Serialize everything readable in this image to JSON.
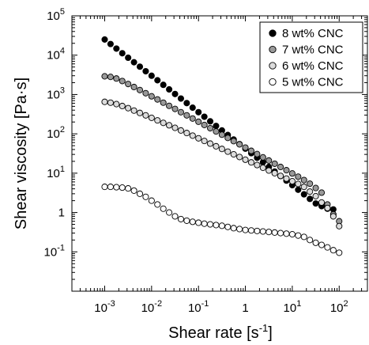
{
  "chart_data": {
    "type": "scatter",
    "xlabel": "Shear rate [s",
    "xlabel_sup": "-1",
    "xlabel_close": "]",
    "ylabel": "Shear viscosity [Pa·s]",
    "xscale": "log",
    "yscale": "log",
    "xlim": [
      0.0002,
      400
    ],
    "ylim": [
      0.01,
      100000
    ],
    "grid": false,
    "legend_position": "top-right",
    "x_ticks": [
      {
        "value": 0.001,
        "base": "10",
        "exp": "-3"
      },
      {
        "value": 0.01,
        "base": "10",
        "exp": "-2"
      },
      {
        "value": 0.1,
        "base": "10",
        "exp": "-1"
      },
      {
        "value": 1,
        "base": "1",
        "exp": ""
      },
      {
        "value": 10,
        "base": "10",
        "exp": "1"
      },
      {
        "value": 100,
        "base": "10",
        "exp": "2"
      }
    ],
    "y_ticks": [
      {
        "value": 0.1,
        "base": "10",
        "exp": "-1"
      },
      {
        "value": 1,
        "base": "1",
        "exp": ""
      },
      {
        "value": 10,
        "base": "10",
        "exp": "1"
      },
      {
        "value": 100,
        "base": "10",
        "exp": "2"
      },
      {
        "value": 1000,
        "base": "10",
        "exp": "3"
      },
      {
        "value": 10000,
        "base": "10",
        "exp": "4"
      },
      {
        "value": 100000,
        "base": "10",
        "exp": "5"
      }
    ],
    "series": [
      {
        "name": "8 wt% CNC",
        "color": "#000000",
        "x": [
          0.001,
          0.001334,
          0.001778,
          0.002371,
          0.003162,
          0.004217,
          0.005623,
          0.007499,
          0.01,
          0.01334,
          0.01778,
          0.02371,
          0.03162,
          0.04217,
          0.05623,
          0.07499,
          0.1,
          0.1334,
          0.1778,
          0.2371,
          0.3162,
          0.4217,
          0.5623,
          0.7499,
          1,
          1.334,
          1.778,
          2.371,
          3.162,
          4.217,
          5.623,
          7.499,
          10,
          13.34,
          17.78,
          23.71,
          31.62,
          42.17,
          56.23,
          74.99
        ],
        "y": [
          25000,
          19200,
          14700,
          11200,
          8600,
          6600,
          5100,
          3900,
          3000,
          2300,
          1760,
          1350,
          1030,
          790,
          605,
          463,
          355,
          272,
          208,
          159,
          122,
          93.5,
          71.6,
          54.8,
          42,
          32.2,
          24.6,
          18.9,
          14.4,
          11,
          8.45,
          6.47,
          4.95,
          3.79,
          2.9,
          2.22,
          1.7,
          1.45,
          1.25,
          1.2
        ]
      },
      {
        "name": "7 wt% CNC",
        "color": "#999999",
        "x": [
          0.001,
          0.001334,
          0.001778,
          0.002371,
          0.003162,
          0.004217,
          0.005623,
          0.007499,
          0.01,
          0.01334,
          0.01778,
          0.02371,
          0.03162,
          0.04217,
          0.05623,
          0.07499,
          0.1,
          0.1334,
          0.1778,
          0.2371,
          0.3162,
          0.4217,
          0.5623,
          0.7499,
          1,
          1.334,
          1.778,
          2.371,
          3.162,
          4.217,
          5.623,
          7.499,
          10,
          13.34,
          17.78,
          23.71,
          31.62,
          42.17,
          56.23,
          74.99,
          100
        ],
        "y": [
          2900,
          2800,
          2550,
          2200,
          1850,
          1550,
          1300,
          1080,
          900,
          750,
          620,
          515,
          430,
          355,
          295,
          245,
          203,
          168,
          139,
          115,
          95,
          78.7,
          65.2,
          54,
          44.7,
          37,
          30.6,
          25.3,
          21,
          17.4,
          14.4,
          11.9,
          9.84,
          8.15,
          6.7,
          5.4,
          4.2,
          3.2,
          1.6,
          0.9,
          0.6
        ]
      },
      {
        "name": "6 wt% CNC",
        "color": "#dcdcdc",
        "x": [
          0.001,
          0.001334,
          0.001778,
          0.002371,
          0.003162,
          0.004217,
          0.005623,
          0.007499,
          0.01,
          0.01334,
          0.01778,
          0.02371,
          0.03162,
          0.04217,
          0.05623,
          0.07499,
          0.1,
          0.1334,
          0.1778,
          0.2371,
          0.3162,
          0.4217,
          0.5623,
          0.7499,
          1,
          1.334,
          1.778,
          2.371,
          3.162,
          4.217,
          5.623,
          7.499,
          10,
          13.34,
          17.78,
          23.71,
          31.62,
          42.17,
          56.23,
          74.99,
          100
        ],
        "y": [
          650,
          620,
          570,
          510,
          450,
          390,
          340,
          295,
          255,
          220,
          190,
          165,
          142,
          122,
          105,
          90,
          77,
          66,
          56.5,
          48.3,
          41.3,
          35.3,
          30.2,
          25.8,
          22,
          18.8,
          16.1,
          13.7,
          11.7,
          10,
          8.55,
          7.3,
          6.24,
          5.33,
          4.5,
          3.4,
          2.6,
          1.8,
          1.3,
          0.8,
          0.45
        ]
      },
      {
        "name": "5 wt% CNC",
        "color": "#ffffff",
        "x": [
          0.001,
          0.001334,
          0.001778,
          0.002371,
          0.003162,
          0.004217,
          0.005623,
          0.007499,
          0.01,
          0.01334,
          0.01778,
          0.02371,
          0.03162,
          0.04217,
          0.05623,
          0.07499,
          0.1,
          0.1334,
          0.1778,
          0.2371,
          0.3162,
          0.4217,
          0.5623,
          0.7499,
          1,
          1.334,
          1.778,
          2.371,
          3.162,
          4.217,
          5.623,
          7.499,
          10,
          13.34,
          17.78,
          23.71,
          31.62,
          42.17,
          56.23,
          74.99,
          100
        ],
        "y": [
          4.5,
          4.5,
          4.4,
          4.3,
          4.1,
          3.6,
          3,
          2.5,
          2,
          1.6,
          1.25,
          1,
          0.8,
          0.68,
          0.62,
          0.58,
          0.55,
          0.52,
          0.5,
          0.48,
          0.46,
          0.43,
          0.4,
          0.38,
          0.36,
          0.35,
          0.34,
          0.33,
          0.32,
          0.31,
          0.3,
          0.29,
          0.28,
          0.26,
          0.24,
          0.2,
          0.17,
          0.15,
          0.13,
          0.11,
          0.095
        ]
      }
    ]
  }
}
